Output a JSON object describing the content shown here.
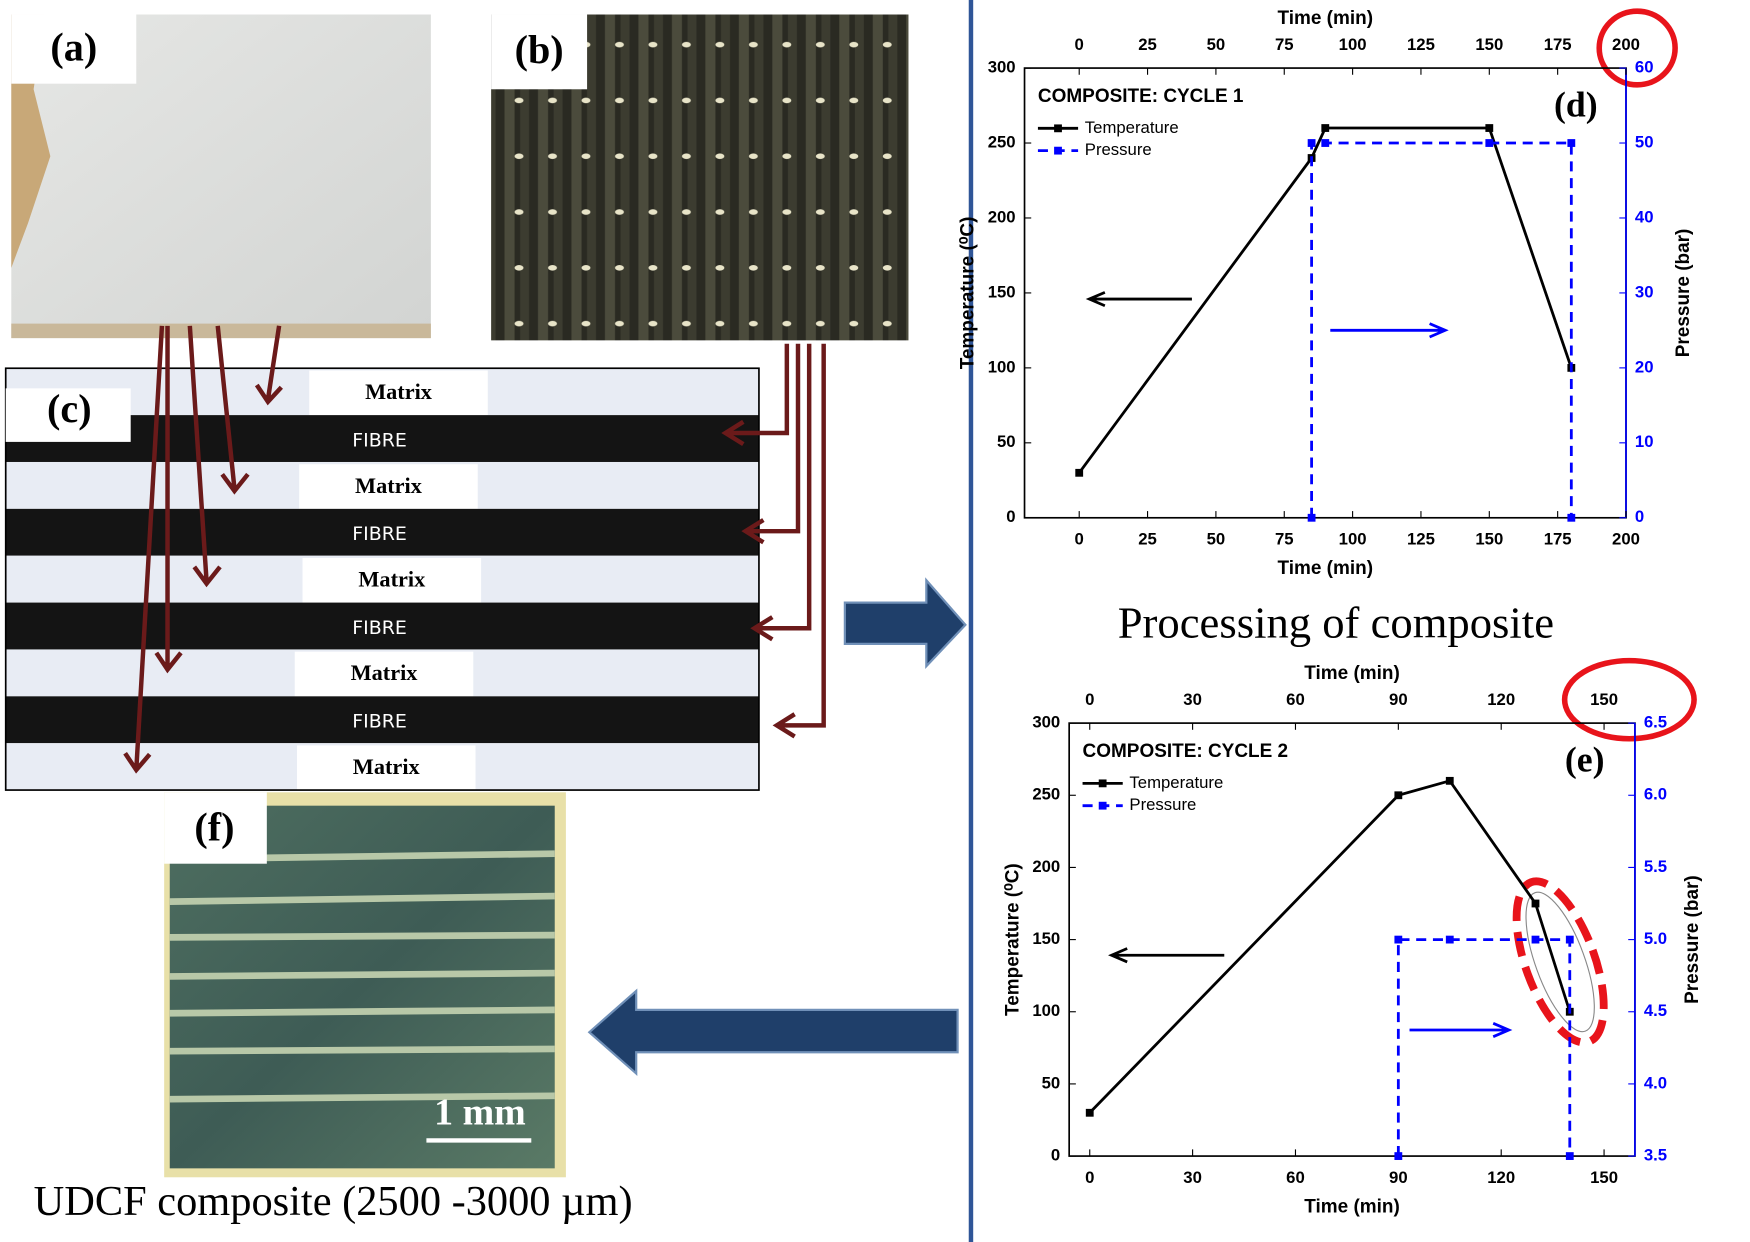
{
  "figure": {
    "panel_a": "(a)",
    "panel_b": "(b)",
    "panel_c": "(c)",
    "panel_f": "(f)",
    "layers": [
      "Matrix",
      "FIBRE",
      "Matrix",
      "FIBRE",
      "Matrix",
      "FIBRE",
      "Matrix",
      "FIBRE",
      "Matrix"
    ],
    "scale_bar": "1 mm",
    "caption_f": "UDCF composite (2500 -3000 µm)",
    "processing": "Processing of composite"
  },
  "chart_data": [
    {
      "type": "line",
      "title": "COMPOSITE: CYCLE 1",
      "panel": "(d)",
      "xlabel": "Time (min)",
      "ylabel": "Temperature (⁰C)",
      "y2label": "Pressure (bar)",
      "xlim": [
        -20,
        200
      ],
      "xticks": [
        0,
        25,
        50,
        75,
        100,
        125,
        150,
        175,
        200
      ],
      "ylim": [
        0,
        300
      ],
      "yticks": [
        0,
        50,
        100,
        150,
        200,
        250,
        300
      ],
      "y2lim": [
        0,
        60
      ],
      "y2ticks": [
        0,
        10,
        20,
        30,
        40,
        50,
        60
      ],
      "y2color": "#0000ff",
      "legend": "upper left",
      "series": [
        {
          "name": "Temperature",
          "color": "#000000",
          "linestyle": "solid",
          "x": [
            0,
            85,
            90,
            150,
            180
          ],
          "values": [
            30,
            240,
            260,
            260,
            100
          ]
        },
        {
          "name": "Pressure",
          "color": "#0000ff",
          "linestyle": "dashed",
          "axis": "y2",
          "x": [
            85,
            85,
            90,
            150,
            180,
            180
          ],
          "values": [
            0,
            50,
            50,
            50,
            50,
            0
          ]
        }
      ]
    },
    {
      "type": "line",
      "title": "COMPOSITE: CYCLE 2",
      "panel": "(e)",
      "xlabel": "Time (min)",
      "ylabel": "Temperature (⁰C)",
      "y2label": "Pressure (bar)",
      "xlim": [
        -6,
        159
      ],
      "xticks": [
        0,
        30,
        60,
        90,
        120,
        150
      ],
      "ylim": [
        0,
        300
      ],
      "yticks": [
        0,
        50,
        100,
        150,
        200,
        250,
        300
      ],
      "y2lim": [
        3.5,
        6.5
      ],
      "y2ticks": [
        3.5,
        {
          "value": 4,
          "label": "4.0"
        },
        4.5,
        {
          "value": 5,
          "label": "5.0"
        },
        5.5,
        {
          "value": 6,
          "label": "6.0"
        },
        6.5
      ],
      "y2color": "#0000ff",
      "legend": "upper left",
      "series": [
        {
          "name": "Temperature",
          "color": "#000000",
          "linestyle": "solid",
          "x": [
            0,
            90,
            105,
            130,
            140
          ],
          "values": [
            30,
            250,
            260,
            175,
            100
          ]
        },
        {
          "name": "Pressure",
          "color": "#0000ff",
          "linestyle": "dashed",
          "axis": "y2",
          "x": [
            90,
            90,
            105,
            130,
            140,
            140
          ],
          "values": [
            3.5,
            5,
            5,
            5,
            5,
            3.5
          ]
        }
      ]
    }
  ]
}
